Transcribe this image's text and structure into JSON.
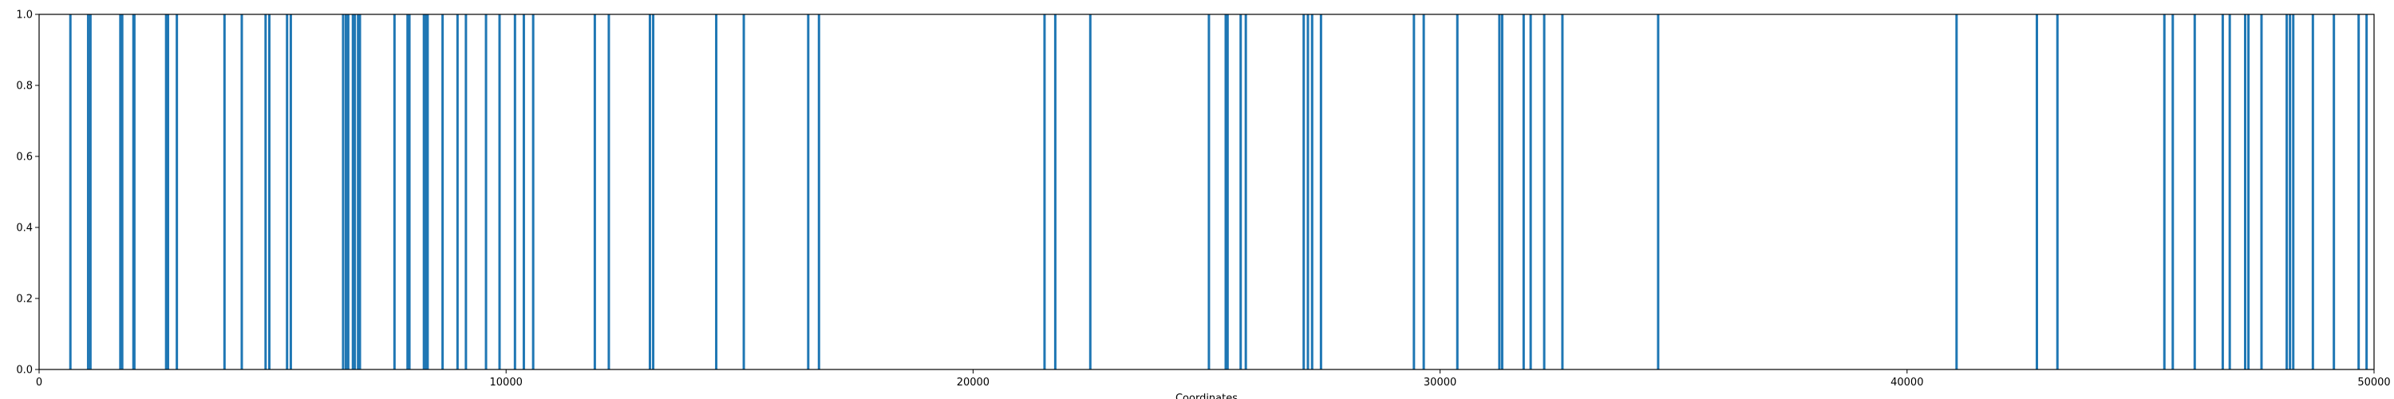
{
  "chart_data": {
    "type": "bar",
    "title": "",
    "xlabel": "Coordinates",
    "ylabel": "",
    "xlim": [
      0,
      50000
    ],
    "ylim": [
      0,
      1.0
    ],
    "grid": false,
    "color": "#1f77b4",
    "x_ticks": [
      0,
      10000,
      20000,
      30000,
      40000,
      50000
    ],
    "x_tick_labels": [
      "0",
      "10000",
      "20000",
      "30000",
      "40000",
      "50000"
    ],
    "y_ticks": [
      0,
      0.2,
      0.4,
      0.6,
      0.8,
      1.0
    ],
    "y_tick_labels": [
      "0.0",
      "0.2",
      "0.4",
      "0.6",
      "0.8",
      "1.0"
    ],
    "x": [
      670,
      1050,
      1100,
      1740,
      1780,
      2020,
      2040,
      2720,
      2760,
      2950,
      3970,
      4340,
      4850,
      4930,
      5310,
      5390,
      6510,
      6570,
      6620,
      6720,
      6760,
      6830,
      6870,
      7610,
      7890,
      7930,
      8240,
      8280,
      8320,
      8640,
      8960,
      9140,
      9570,
      9860,
      10190,
      10380,
      10580,
      11900,
      12200,
      13080,
      13150,
      14500,
      15090,
      16470,
      16700,
      21530,
      21760,
      22510,
      25050,
      25410,
      25450,
      25730,
      25840,
      27080,
      27170,
      27260,
      27450,
      29440,
      29650,
      30370,
      31270,
      31330,
      31790,
      31940,
      32230,
      32620,
      34670,
      41060,
      42780,
      43220,
      45510,
      45690,
      46160,
      46760,
      46910,
      47240,
      47310,
      47590,
      48130,
      48200,
      48270,
      48690,
      49140,
      49670,
      49840
    ],
    "values": [
      1,
      1,
      1,
      1,
      1,
      1,
      1,
      1,
      1,
      1,
      1,
      1,
      1,
      1,
      1,
      1,
      1,
      1,
      1,
      1,
      1,
      1,
      1,
      1,
      1,
      1,
      1,
      1,
      1,
      1,
      1,
      1,
      1,
      1,
      1,
      1,
      1,
      1,
      1,
      1,
      1,
      1,
      1,
      1,
      1,
      1,
      1,
      1,
      1,
      1,
      1,
      1,
      1,
      1,
      1,
      1,
      1,
      1,
      1,
      1,
      1,
      1,
      1,
      1,
      1,
      1,
      1,
      1,
      1,
      1,
      1,
      1,
      1,
      1,
      1,
      1,
      1,
      1,
      1,
      1,
      1,
      1,
      1,
      1,
      1
    ]
  }
}
